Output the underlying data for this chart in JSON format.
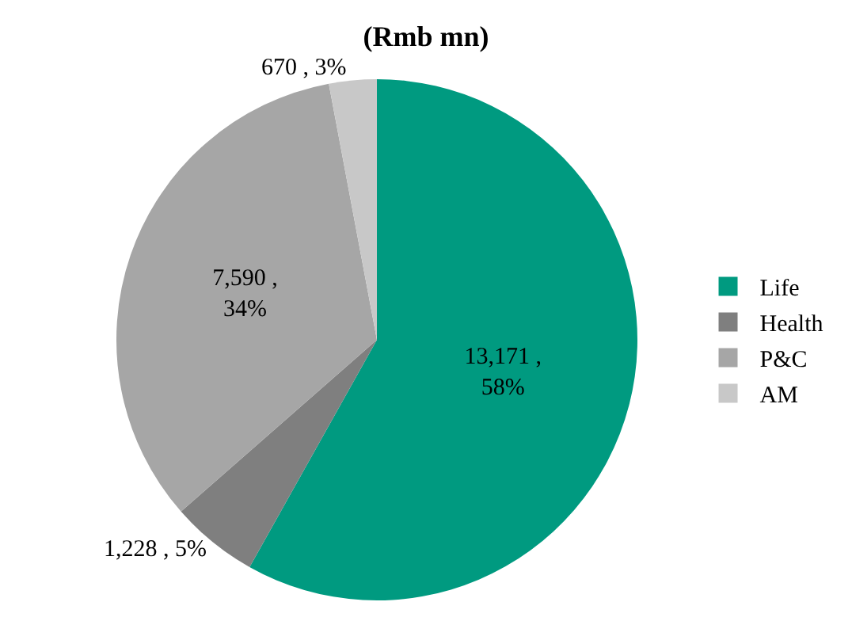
{
  "chart_data": {
    "type": "pie",
    "title": "(Rmb mn)",
    "categories": [
      "Life",
      "Health",
      "P&C",
      "AM"
    ],
    "values": [
      13171,
      1228,
      7590,
      670
    ],
    "colors": [
      "#009a80",
      "#7f7f7f",
      "#a6a6a6",
      "#c8c8c8"
    ],
    "value_labels": [
      "13,171 ,\n58%",
      "1,228 , 5%",
      "7,590 ,\n34%",
      "670 , 3%"
    ],
    "legend": "right"
  }
}
